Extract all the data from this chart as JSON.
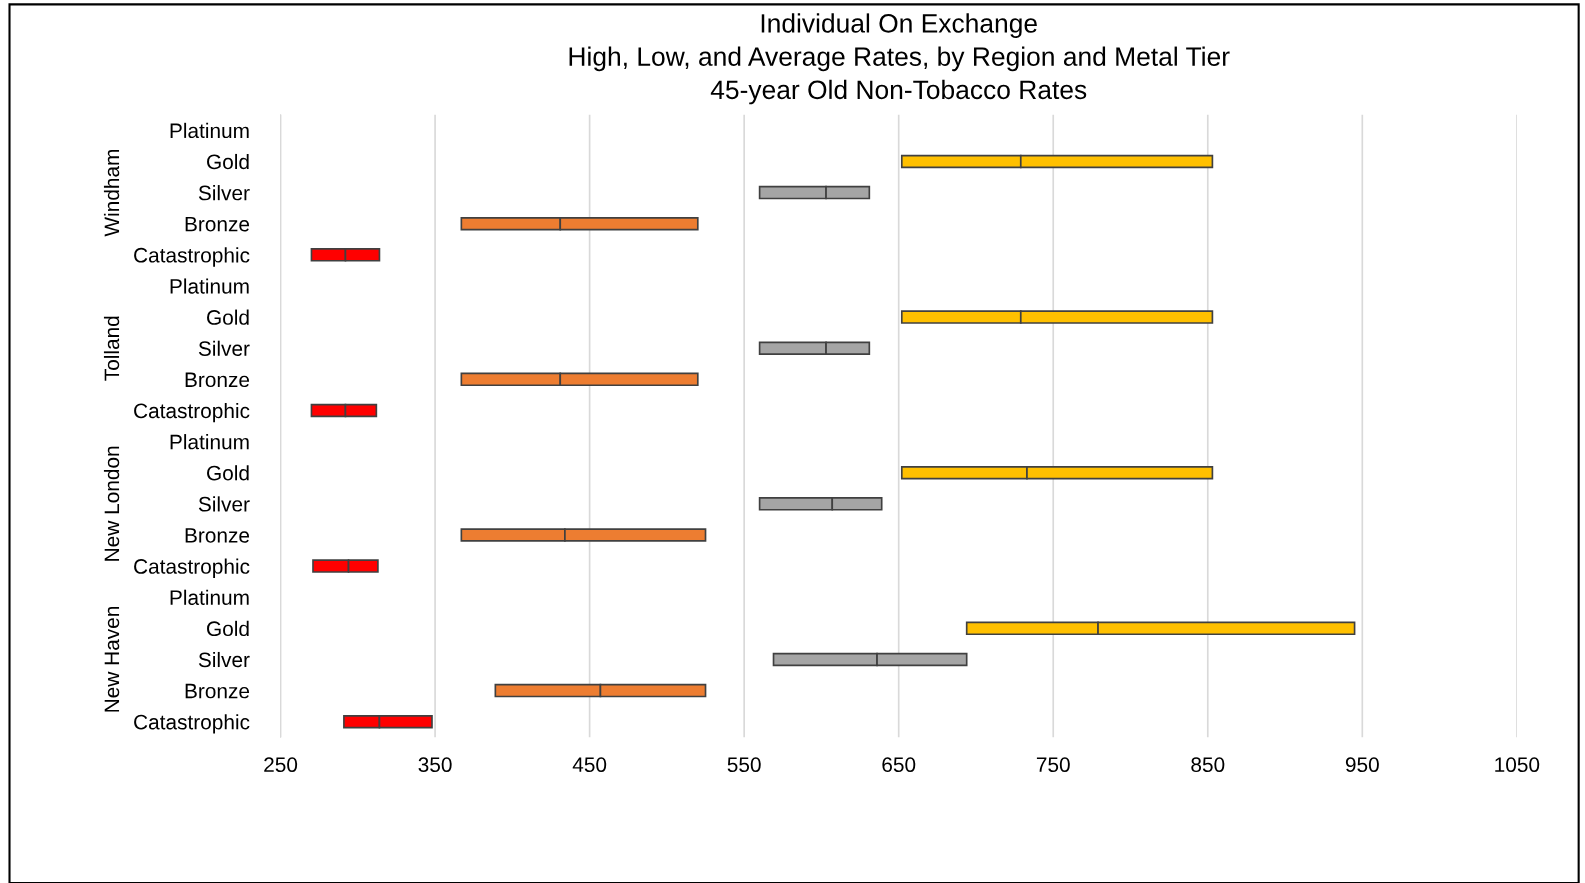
{
  "chart_data": {
    "type": "bar",
    "orientation": "horizontal",
    "title": "Individual On Exchange\nHigh, Low, and Average Rates, by Region and Metal Tier\n45-year Old Non-Tobacco Rates",
    "categories": [
      "Platinum",
      "Gold",
      "Silver",
      "Bronze",
      "Catastrophic",
      "Platinum",
      "Gold",
      "Silver",
      "Bronze",
      "Catastrophic",
      "Platinum",
      "Gold",
      "Silver",
      "Bronze",
      "Catastrophic",
      "Platinum",
      "Gold",
      "Silver",
      "Bronze",
      "Catastrophic"
    ],
    "annotations": [
      "Windham",
      "Tolland",
      "New London",
      "New Haven"
    ],
    "series": [
      {
        "colors": [
          null,
          "#ffc000",
          "#a5a5a5",
          "#ed7d31",
          "#ff0000",
          null,
          "#ffc000",
          "#a5a5a5",
          "#ed7d31",
          "#ff0000",
          null,
          "#ffc000",
          "#a5a5a5",
          "#ed7d31",
          "#ff0000",
          null,
          "#ffc000",
          "#a5a5a5",
          "#ed7d31",
          "#ff0000"
        ],
        "base": [
          null,
          652,
          560,
          367,
          270,
          null,
          652,
          560,
          367,
          270,
          null,
          652,
          560,
          367,
          271,
          null,
          694,
          569,
          389,
          291
        ],
        "values": [
          null,
          77,
          43,
          64,
          22,
          null,
          77,
          43,
          64,
          22,
          null,
          81,
          47,
          67,
          23,
          null,
          85,
          67,
          68,
          23
        ]
      },
      {
        "colors": [
          null,
          "#ffc000",
          "#a5a5a5",
          "#ed7d31",
          "#ff0000",
          null,
          "#ffc000",
          "#a5a5a5",
          "#ed7d31",
          "#ff0000",
          null,
          "#ffc000",
          "#a5a5a5",
          "#ed7d31",
          "#ff0000",
          null,
          "#ffc000",
          "#a5a5a5",
          "#ed7d31",
          "#ff0000"
        ],
        "base": [
          null,
          729,
          603,
          431,
          292,
          null,
          729,
          603,
          431,
          292,
          null,
          733,
          607,
          434,
          294,
          null,
          779,
          636,
          457,
          314
        ],
        "values": [
          null,
          124,
          28,
          89,
          22,
          null,
          124,
          28,
          89,
          20,
          null,
          120,
          32,
          91,
          19,
          null,
          166,
          58,
          68,
          34
        ]
      }
    ],
    "xlim": [
      250,
      1050
    ],
    "xticks": [
      250,
      350,
      450,
      550,
      650,
      750,
      850,
      950,
      1050
    ],
    "grid": "x"
  }
}
